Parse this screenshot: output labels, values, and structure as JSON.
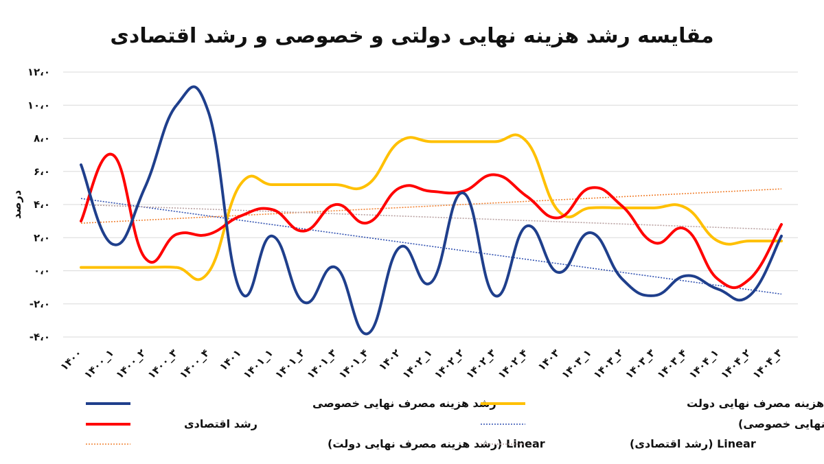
{
  "chart_data": {
    "type": "line",
    "title": "مقایسه رشد هزینه نهایی دولتی و خصوصی و رشد اقتصادی",
    "ylabel": "درصد",
    "xlabel": "",
    "ylim": [
      -4,
      12
    ],
    "yticks": [
      -4,
      -2,
      0,
      2,
      4,
      6,
      8,
      10,
      12
    ],
    "ytick_labels": [
      "-۴،۰",
      "-۲،۰",
      "۰،۰",
      "۲،۰",
      "۴،۰",
      "۶،۰",
      "۸،۰",
      "۱۰،۰",
      "۱۲،۰"
    ],
    "grid": true,
    "legend_position": "bottom",
    "categories": [
      "۱۴۰۰",
      "۱۴۰۰_۱",
      "۱۴۰۰_۲",
      "۱۴۰۰_۳",
      "۱۴۰۰_۴",
      "۱۴۰۱",
      "۱۴۰۱_۱",
      "۱۴۰۱_۲",
      "۱۴۰۱_۳",
      "۱۴۰۱_۴",
      "۱۴۰۲",
      "۱۴۰۲_۱",
      "۱۴۰۲_۲",
      "۱۴۰۲_۳",
      "۱۴۰۲_۴",
      "۱۴۰۳",
      "۱۴۰۳_۱",
      "۱۴۰۳_۲",
      "۱۴۰۳_۳",
      "۱۴۰۳_۴",
      "۱۴۰۴_۱",
      "۱۴۰۴_۲",
      "۱۴۰۴_۳"
    ],
    "series": [
      {
        "name": "رشد هزینه مصرف نهایی خصوصی",
        "color": "#1f3f8c",
        "values": [
          6.4,
          1.6,
          5.0,
          10.0,
          9.6,
          -1.2,
          2.1,
          -1.9,
          0.2,
          -3.8,
          1.4,
          -0.7,
          4.7,
          -1.5,
          2.7,
          -0.1,
          2.3,
          -0.5,
          -1.5,
          -0.3,
          -1.1,
          -1.5,
          2.1
        ]
      },
      {
        "name": "رشد هزینه مصرف نهایی دولت",
        "color": "#ffc000",
        "values": [
          0.2,
          0.2,
          0.2,
          0.2,
          -0.1,
          5.2,
          5.2,
          5.2,
          5.2,
          5.2,
          7.8,
          7.8,
          7.8,
          7.8,
          7.8,
          3.6,
          3.8,
          3.8,
          3.8,
          3.8,
          1.8,
          1.8,
          1.8
        ]
      },
      {
        "name": "رشد اقتصادی",
        "color": "#ff0000",
        "values": [
          3.0,
          7.0,
          0.8,
          2.2,
          2.2,
          3.3,
          3.7,
          2.4,
          4.0,
          2.9,
          5.0,
          4.8,
          4.8,
          5.8,
          4.5,
          3.2,
          5.0,
          3.9,
          1.7,
          2.5,
          -0.5,
          -0.5,
          2.8
        ]
      }
    ],
    "trendlines": [
      {
        "name": "Linear (رشد هزینه مصرف نهایی خصوصی)",
        "of_series": 0,
        "color": "#2e4fb0"
      },
      {
        "name": "Linear (رشد هزینه مصرف نهایی دولت)",
        "of_series": 1,
        "color": "#f08030"
      },
      {
        "name": "Linear (رشد اقتصادی)",
        "of_series": 2,
        "color": "#b8a0a0"
      }
    ],
    "legend": [
      "رشد هزینه مصرف نهایی خصوصی",
      "رشد هزینه مصرف نهایی دولت",
      "رشد اقتصادی",
      "Linear (رشد هزینه مصرف نهایی خصوصی)",
      "Linear (رشد هزینه مصرف نهایی دولت)",
      "Linear (رشد اقتصادی)"
    ]
  }
}
